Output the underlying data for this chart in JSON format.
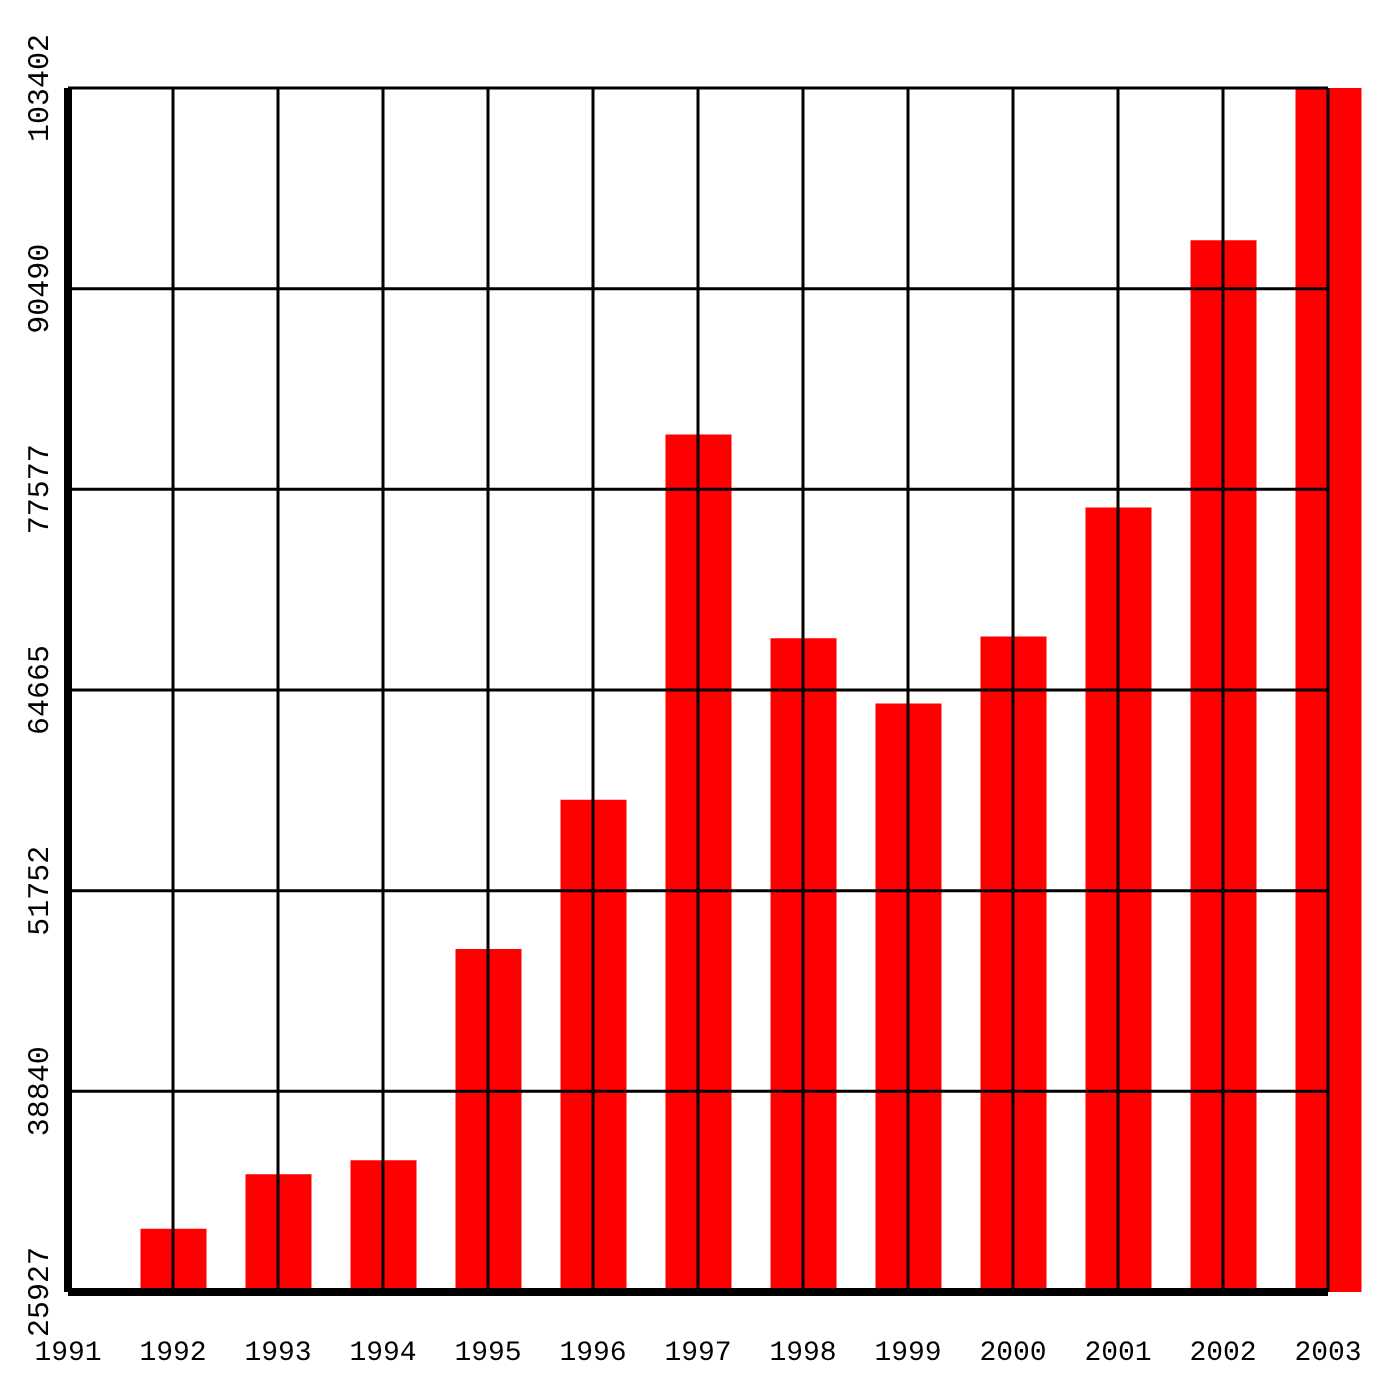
{
  "chart_data": {
    "type": "bar",
    "x": [
      1991,
      1992,
      1993,
      1994,
      1995,
      1996,
      1997,
      1998,
      1999,
      2000,
      2001,
      2002,
      2003
    ],
    "values": [
      25927,
      30000,
      33500,
      34400,
      48000,
      57600,
      81100,
      68000,
      63800,
      68100,
      76400,
      93600,
      103402
    ],
    "color": "#ff0000",
    "xlim": [
      1991,
      2003
    ],
    "xticks": [
      1991,
      1992,
      1993,
      1994,
      1995,
      1996,
      1997,
      1998,
      1999,
      2000,
      2001,
      2002,
      2003
    ],
    "ylim": [
      25927,
      103402
    ],
    "yticks": [
      25927,
      38840,
      51752,
      64665,
      77577,
      90490,
      103402
    ],
    "grid": true
  }
}
